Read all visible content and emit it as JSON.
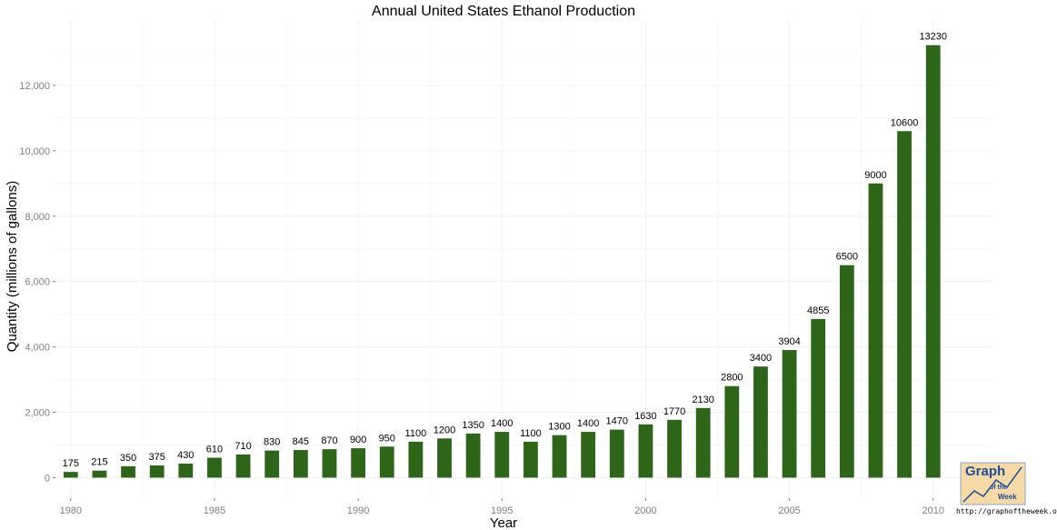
{
  "chart_data": {
    "type": "bar",
    "title": "Annual United States Ethanol Production",
    "xlabel": "Year",
    "ylabel": "Quantity (millions of gallons)",
    "categories": [
      1980,
      1981,
      1982,
      1983,
      1984,
      1985,
      1986,
      1987,
      1988,
      1989,
      1990,
      1991,
      1992,
      1993,
      1994,
      1995,
      1996,
      1997,
      1998,
      1999,
      2000,
      2001,
      2002,
      2003,
      2004,
      2005,
      2006,
      2007,
      2008,
      2009,
      2010
    ],
    "values": [
      175,
      215,
      350,
      375,
      430,
      610,
      710,
      830,
      845,
      870,
      900,
      950,
      1100,
      1200,
      1350,
      1400,
      1100,
      1300,
      1400,
      1470,
      1630,
      1770,
      2130,
      2800,
      3400,
      3904,
      4855,
      6500,
      9000,
      10600,
      13230
    ],
    "value_labels": [
      "175",
      "215",
      "350",
      "375",
      "430",
      "610",
      "710",
      "830",
      "845",
      "870",
      "900",
      "950",
      "1100",
      "1200",
      "1350",
      "1400",
      "1100",
      "1300",
      "1400",
      "1470",
      "1630",
      "1770",
      "2130",
      "2800",
      "3400",
      "3904",
      "4855",
      "6500",
      "9000",
      "10600",
      "13230"
    ],
    "x_ticks": [
      "1980",
      "1985",
      "1990",
      "1995",
      "2000",
      "2005",
      "2010"
    ],
    "y_ticks": [
      0,
      2000,
      4000,
      6000,
      8000,
      10000,
      12000
    ],
    "y_tick_labels": [
      "0",
      "2,000",
      "4,000",
      "6,000",
      "8,000",
      "10,000",
      "12,000"
    ],
    "xlim": [
      1979.5,
      2012
    ],
    "ylim": [
      -600,
      14000
    ],
    "grid": true,
    "legend": "none",
    "colors": {
      "bar": "#2d6619",
      "grid": "#f0f0f0",
      "tick_label": "#7f7f7f"
    }
  },
  "watermark": {
    "logo_line1": "Graph",
    "logo_line2": "of the",
    "logo_line3": "Week",
    "url": "http://graphoftheweek.org/"
  }
}
